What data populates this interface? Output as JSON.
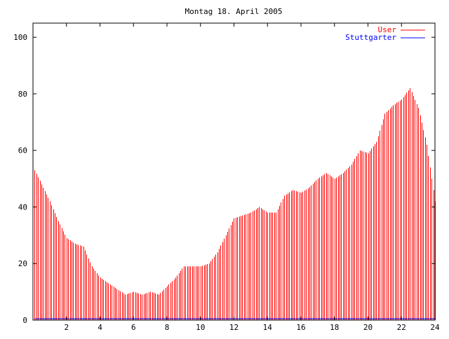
{
  "chart_data": {
    "type": "bar",
    "title": "Montag 18. April 2005",
    "xlim": [
      0,
      24
    ],
    "ylim": [
      0,
      105
    ],
    "x_ticks": [
      "2",
      "4",
      "6",
      "8",
      "10",
      "12",
      "14",
      "16",
      "18",
      "20",
      "22",
      "24"
    ],
    "y_ticks": [
      "0",
      "20",
      "40",
      "60",
      "80",
      "100"
    ],
    "legend_position": "top-right",
    "colors": {
      "user": "#ff0000",
      "stuttgarter": "#0000ff",
      "frame": "#000000"
    },
    "series": [
      {
        "name": "User",
        "x": [
          0.1,
          0.5,
          1.0,
          1.5,
          2.0,
          2.5,
          3.0,
          3.5,
          4.0,
          4.5,
          5.0,
          5.5,
          6.0,
          6.5,
          7.0,
          7.5,
          8.0,
          8.5,
          9.0,
          9.5,
          10.0,
          10.5,
          11.0,
          11.5,
          12.0,
          12.5,
          13.0,
          13.5,
          14.0,
          14.5,
          15.0,
          15.5,
          16.0,
          16.5,
          17.0,
          17.5,
          18.0,
          18.5,
          19.0,
          19.5,
          20.0,
          20.5,
          21.0,
          21.5,
          22.0,
          22.5,
          23.0,
          23.5,
          24.0
        ],
        "values": [
          53,
          48,
          42,
          35,
          29,
          27,
          26,
          19,
          15,
          13,
          11,
          9,
          10,
          9,
          10,
          9,
          12,
          15,
          19,
          19,
          19,
          20,
          24,
          30,
          36,
          37,
          38,
          40,
          38,
          38,
          44,
          46,
          45,
          47,
          50,
          52,
          50,
          52,
          55,
          60,
          59,
          63,
          73,
          76,
          78,
          82,
          75,
          62,
          42
        ]
      },
      {
        "name": "Stuttgarter",
        "x": [
          0.1,
          4.0,
          8.0,
          12.0,
          16.0,
          20.0,
          24.0
        ],
        "values": [
          0.5,
          0.5,
          0.5,
          0.5,
          0.5,
          0.5,
          0.5
        ]
      }
    ]
  }
}
